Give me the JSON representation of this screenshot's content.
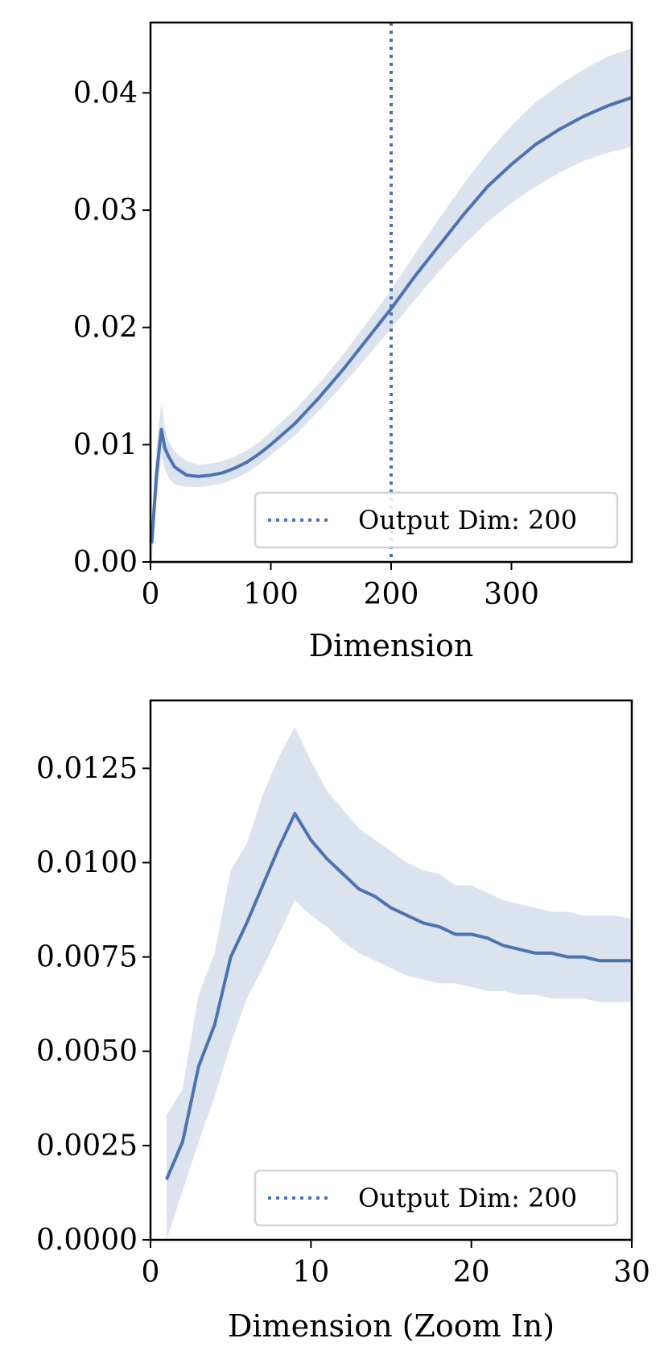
{
  "chart_data": [
    {
      "type": "line",
      "title": "",
      "xlabel": "Dimension",
      "ylabel": "",
      "xlim": [
        0,
        400
      ],
      "ylim": [
        0,
        0.046
      ],
      "xticks": [
        0,
        100,
        200,
        300
      ],
      "xtick_labels": [
        "0",
        "100",
        "200",
        "300"
      ],
      "yticks": [
        0,
        0.01,
        0.02,
        0.03,
        0.04
      ],
      "ytick_labels": [
        "0.00",
        "0.01",
        "0.02",
        "0.03",
        "0.04"
      ],
      "grid": false,
      "legend": {
        "position": "lower-right",
        "entries": [
          "Output Dim: 200"
        ]
      },
      "reference_line": {
        "label": "Output Dim: 200",
        "x": 200,
        "style": "dotted",
        "color": "#4c72b0"
      },
      "series": [
        {
          "color": "#4c72b0",
          "band_color": "#dbe3ee",
          "x": [
            1,
            5,
            9,
            12,
            15,
            20,
            30,
            40,
            50,
            60,
            70,
            80,
            90,
            100,
            120,
            140,
            160,
            180,
            200,
            220,
            240,
            260,
            280,
            300,
            320,
            340,
            360,
            380,
            400
          ],
          "y": [
            0.0016,
            0.0075,
            0.0113,
            0.0097,
            0.009,
            0.0081,
            0.0074,
            0.0073,
            0.0074,
            0.0076,
            0.008,
            0.0085,
            0.0092,
            0.01,
            0.0118,
            0.014,
            0.0164,
            0.019,
            0.0216,
            0.0244,
            0.027,
            0.0296,
            0.032,
            0.0339,
            0.0356,
            0.0369,
            0.038,
            0.0389,
            0.0396
          ],
          "lower": [
            0.0,
            0.0052,
            0.009,
            0.0079,
            0.0072,
            0.0066,
            0.0064,
            0.0064,
            0.0065,
            0.0067,
            0.0071,
            0.0076,
            0.0083,
            0.0091,
            0.0108,
            0.0129,
            0.0151,
            0.0175,
            0.0199,
            0.0224,
            0.0248,
            0.027,
            0.029,
            0.0306,
            0.032,
            0.0332,
            0.0342,
            0.0349,
            0.0354
          ],
          "upper": [
            0.0033,
            0.0098,
            0.0136,
            0.0115,
            0.0103,
            0.0094,
            0.0086,
            0.0083,
            0.0084,
            0.0086,
            0.009,
            0.0095,
            0.0102,
            0.0111,
            0.013,
            0.0152,
            0.0177,
            0.0204,
            0.0232,
            0.0263,
            0.0293,
            0.0322,
            0.0349,
            0.0372,
            0.0392,
            0.0407,
            0.042,
            0.0431,
            0.0438
          ]
        }
      ]
    },
    {
      "type": "line",
      "title": "",
      "xlabel": "Dimension (Zoom In)",
      "ylabel": "",
      "xlim": [
        0,
        30
      ],
      "ylim": [
        0,
        0.0143
      ],
      "xticks": [
        0,
        10,
        20,
        30
      ],
      "xtick_labels": [
        "0",
        "10",
        "20",
        "30"
      ],
      "yticks": [
        0,
        0.0025,
        0.005,
        0.0075,
        0.01,
        0.0125
      ],
      "ytick_labels": [
        "0.0000",
        "0.0025",
        "0.0050",
        "0.0075",
        "0.0100",
        "0.0125"
      ],
      "grid": false,
      "legend": {
        "position": "lower-right",
        "entries": [
          "Output Dim: 200"
        ]
      },
      "series": [
        {
          "color": "#4c72b0",
          "band_color": "#dbe3ee",
          "x": [
            1,
            2,
            3,
            4,
            5,
            6,
            7,
            8,
            9,
            10,
            11,
            12,
            13,
            14,
            15,
            16,
            17,
            18,
            19,
            20,
            21,
            22,
            23,
            24,
            25,
            26,
            27,
            28,
            29,
            30
          ],
          "y": [
            0.0016,
            0.0026,
            0.0046,
            0.0057,
            0.0075,
            0.0084,
            0.0094,
            0.0104,
            0.0113,
            0.0106,
            0.0101,
            0.0097,
            0.0093,
            0.0091,
            0.0088,
            0.0086,
            0.0084,
            0.0083,
            0.0081,
            0.0081,
            0.008,
            0.0078,
            0.0077,
            0.0076,
            0.0076,
            0.0075,
            0.0075,
            0.0074,
            0.0074,
            0.0074
          ],
          "lower": [
            0.0,
            0.0013,
            0.0026,
            0.0038,
            0.0052,
            0.0064,
            0.0072,
            0.0081,
            0.009,
            0.0086,
            0.0083,
            0.0079,
            0.0076,
            0.0074,
            0.0072,
            0.007,
            0.0069,
            0.0068,
            0.0068,
            0.0067,
            0.0066,
            0.0066,
            0.0065,
            0.0065,
            0.0064,
            0.0064,
            0.0064,
            0.0063,
            0.0063,
            0.0063
          ],
          "upper": [
            0.0033,
            0.004,
            0.0065,
            0.0076,
            0.0098,
            0.0105,
            0.0118,
            0.0128,
            0.0136,
            0.0127,
            0.0119,
            0.0114,
            0.0109,
            0.0106,
            0.0103,
            0.01,
            0.0098,
            0.0097,
            0.0094,
            0.0094,
            0.0092,
            0.009,
            0.0089,
            0.0088,
            0.0087,
            0.0087,
            0.0086,
            0.0086,
            0.0086,
            0.0085
          ]
        }
      ]
    }
  ]
}
